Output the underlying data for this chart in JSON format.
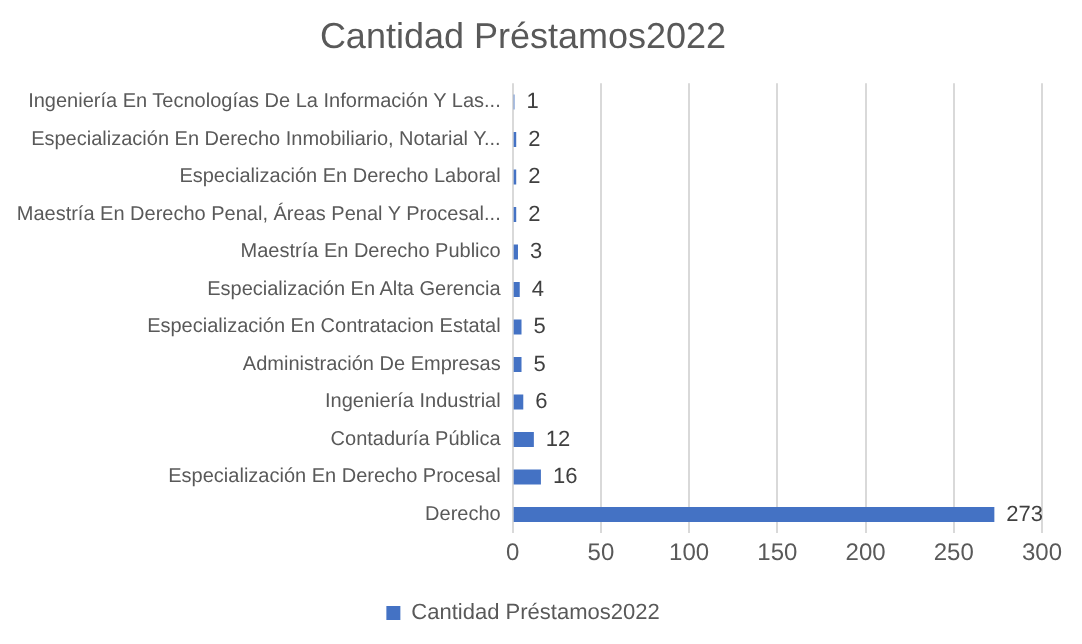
{
  "chart_data": {
    "type": "bar",
    "orientation": "horizontal",
    "title": "Cantidad Préstamos2022",
    "categories": [
      "Ingeniería En Tecnologías De La Información Y Las...",
      "Especialización En Derecho Inmobiliario, Notarial Y...",
      "Especialización En Derecho Laboral",
      "Maestría En Derecho Penal, Áreas Penal Y Procesal...",
      "Maestría En Derecho Publico",
      "Especialización En Alta Gerencia",
      "Especialización En Contratacion Estatal",
      "Administración De Empresas",
      "Ingeniería Industrial",
      "Contaduría Pública",
      "Especialización En Derecho Procesal",
      "Derecho"
    ],
    "series": [
      {
        "name": "Cantidad Préstamos2022",
        "color": "#4472c4",
        "values": [
          1,
          2,
          2,
          2,
          3,
          4,
          5,
          5,
          6,
          12,
          16,
          273
        ]
      }
    ],
    "xlim": [
      0,
      300
    ],
    "xticks": [
      0,
      50,
      100,
      150,
      200,
      250,
      300
    ],
    "grid": "x",
    "legend": "bottom",
    "data_labels": true
  }
}
